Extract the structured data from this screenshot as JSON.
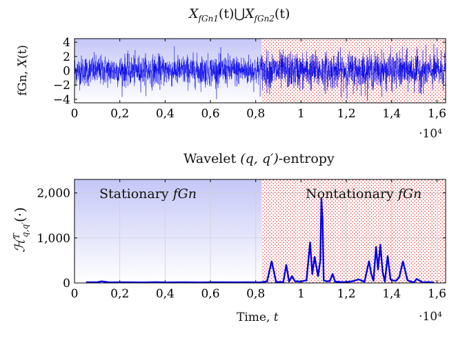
{
  "chart_data": [
    {
      "type": "line",
      "title": "X_fGn1(t) ⋃ X_fGn2(t)",
      "title_parts": {
        "x": "X",
        "sub1": "fGn1",
        "arg": "(t)",
        "union": "⋃",
        "sub2": "fGn2"
      },
      "ylabel": "fGn, X(t)",
      "ylabel_parts": {
        "prefix": "fGn, ",
        "var": "X",
        "arg": "(t)"
      },
      "xlabel": "",
      "xlim": [
        0,
        16384
      ],
      "ylim": [
        -4.5,
        4.5
      ],
      "x_tick_values": [
        0,
        2000,
        4000,
        6000,
        8000,
        10000,
        12000,
        14000,
        16000
      ],
      "x_tick_labels": [
        "0",
        "0,2",
        "0,4",
        "0,6",
        "0,8",
        "1",
        "1,2",
        "1,4",
        "1,6"
      ],
      "y_tick_values": [
        4,
        2,
        0,
        -2,
        -4
      ],
      "y_tick_labels": [
        "4",
        "2",
        "0",
        "−2",
        "−4"
      ],
      "x_multiplier": "·10⁴",
      "regions": [
        {
          "name": "Stationary fGn",
          "x_start": 0,
          "x_end": 8192,
          "fill": "lavender-gradient"
        },
        {
          "name": "Nonstationary fGn",
          "x_start": 8192,
          "x_end": 16384,
          "fill": "red-dots"
        }
      ],
      "series": [
        {
          "name": "fGn signal",
          "color": "#0000e6",
          "n_points": 16384,
          "segments": [
            {
              "x_range": [
                0,
                8192
              ],
              "mean": 0,
              "std": 1.05,
              "range": [
                -4,
                3.7
              ]
            },
            {
              "x_range": [
                8192,
                16384
              ],
              "mean": 0,
              "std": 1.25,
              "range": [
                -4.2,
                4.2
              ]
            }
          ]
        }
      ]
    },
    {
      "type": "line",
      "title": "Wavelet (q, q′)-entropy",
      "title_parts": {
        "prefix": "Wavelet ",
        "math": "(q, q′)",
        "suffix": "-entropy"
      },
      "ylabel": "H^T_{q,q′}(·)",
      "ylabel_parts": {
        "H": "ℋ",
        "sup": "T",
        "sub": "q,q′",
        "arg": "(·)"
      },
      "xlabel": "Time, t",
      "xlabel_parts": {
        "prefix": "Time, ",
        "var": "t"
      },
      "xlim": [
        0,
        16384
      ],
      "ylim": [
        0,
        2300
      ],
      "x_tick_values": [
        0,
        2000,
        4000,
        6000,
        8000,
        10000,
        12000,
        14000,
        16000
      ],
      "x_tick_labels": [
        "0",
        "0,2",
        "0,4",
        "0,6",
        "0,8",
        "1",
        "1,2",
        "1,4",
        "1,6"
      ],
      "y_tick_values": [
        0,
        1000,
        2000
      ],
      "y_tick_labels": [
        "0",
        "1,000",
        "2,000"
      ],
      "x_multiplier": "·10⁴",
      "grid": true,
      "annotations": [
        {
          "prefix": "Stationary ",
          "var": "fGn"
        },
        {
          "prefix": "Nontationary ",
          "var": "fGn"
        }
      ],
      "series": [
        {
          "name": "Wavelet (q,q')-entropy",
          "color": "#0000e6",
          "x": [
            512,
            1024,
            1200,
            1536,
            2048,
            2560,
            3072,
            3584,
            4096,
            4608,
            5120,
            5632,
            6144,
            6656,
            7168,
            7680,
            8192,
            8500,
            8704,
            8900,
            9216,
            9350,
            9472,
            9600,
            9728,
            9984,
            10240,
            10400,
            10496,
            10600,
            10752,
            10850,
            10900,
            10950,
            11000,
            11100,
            11264,
            11400,
            11500,
            11776,
            12000,
            12288,
            12544,
            12800,
            13000,
            13100,
            13200,
            13312,
            13400,
            13500,
            13600,
            13700,
            13824,
            13950,
            14080,
            14200,
            14336,
            14500,
            14700,
            14850,
            15000,
            15100,
            15360,
            15600,
            15872
          ],
          "y": [
            15,
            18,
            35,
            12,
            15,
            14,
            13,
            18,
            12,
            15,
            14,
            13,
            16,
            15,
            14,
            15,
            12,
            35,
            480,
            25,
            20,
            400,
            30,
            150,
            40,
            30,
            60,
            900,
            200,
            580,
            150,
            500,
            1870,
            1400,
            60,
            40,
            40,
            200,
            30,
            20,
            20,
            40,
            80,
            25,
            480,
            200,
            50,
            800,
            300,
            850,
            250,
            30,
            600,
            80,
            50,
            50,
            130,
            480,
            60,
            30,
            15,
            90,
            15,
            20,
            10
          ]
        }
      ]
    }
  ]
}
